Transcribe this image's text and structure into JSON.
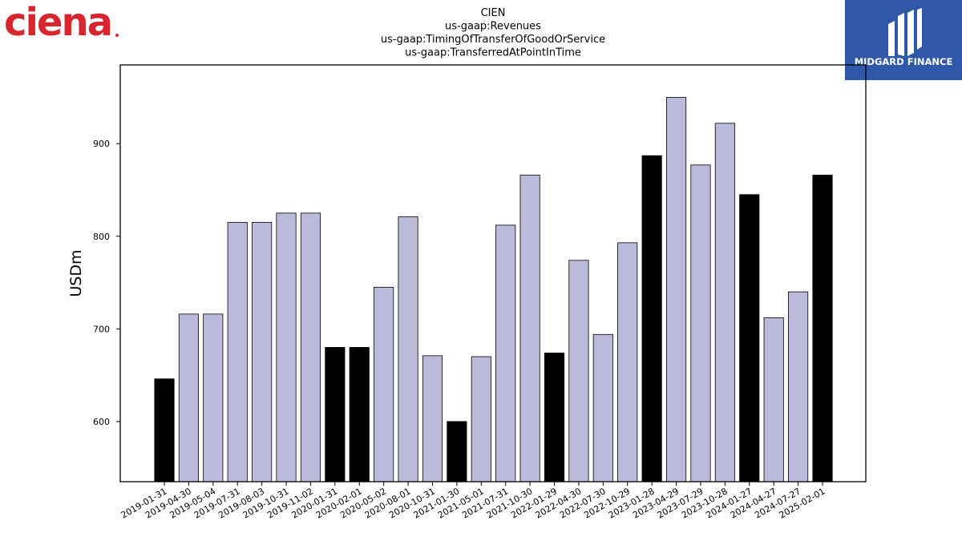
{
  "logos": {
    "left_text": "ciena",
    "right_text": "MIDGARD FINANCE"
  },
  "chart_data": {
    "type": "bar",
    "title_lines": [
      "CIEN",
      "us-gaap:Revenues",
      "us-gaap:TimingOfTransferOfGoodOrService",
      "us-gaap:TransferredAtPointInTime"
    ],
    "ylabel": "USDm",
    "xlabel": "",
    "ylim": [
      535,
      985
    ],
    "yticks": [
      600,
      700,
      800,
      900
    ],
    "grid": false,
    "colors": {
      "quarter": "#bcbadb",
      "fiscal_year": "#000000"
    },
    "categories": [
      "2019-01-31",
      "2019-04-30",
      "2019-05-04",
      "2019-07-31",
      "2019-08-03",
      "2019-10-31",
      "2019-11-02",
      "2020-01-31",
      "2020-02-01",
      "2020-05-02",
      "2020-08-01",
      "2020-10-31",
      "2021-01-30",
      "2021-05-01",
      "2021-07-31",
      "2021-10-30",
      "2022-01-29",
      "2022-04-30",
      "2022-07-30",
      "2022-10-29",
      "2023-01-28",
      "2023-04-29",
      "2023-07-29",
      "2023-10-28",
      "2024-01-27",
      "2024-04-27",
      "2024-07-27",
      "2025-02-01"
    ],
    "values": [
      646,
      716,
      716,
      815,
      815,
      825,
      825,
      680,
      680,
      745,
      821,
      671,
      600,
      670,
      812,
      866,
      674,
      774,
      694,
      793,
      887,
      950,
      877,
      922,
      845,
      712,
      740,
      866
    ],
    "fiscal_year_flags": [
      true,
      false,
      false,
      false,
      false,
      false,
      false,
      true,
      true,
      false,
      false,
      false,
      true,
      false,
      false,
      false,
      true,
      false,
      false,
      false,
      true,
      false,
      false,
      false,
      true,
      false,
      false,
      true
    ]
  }
}
